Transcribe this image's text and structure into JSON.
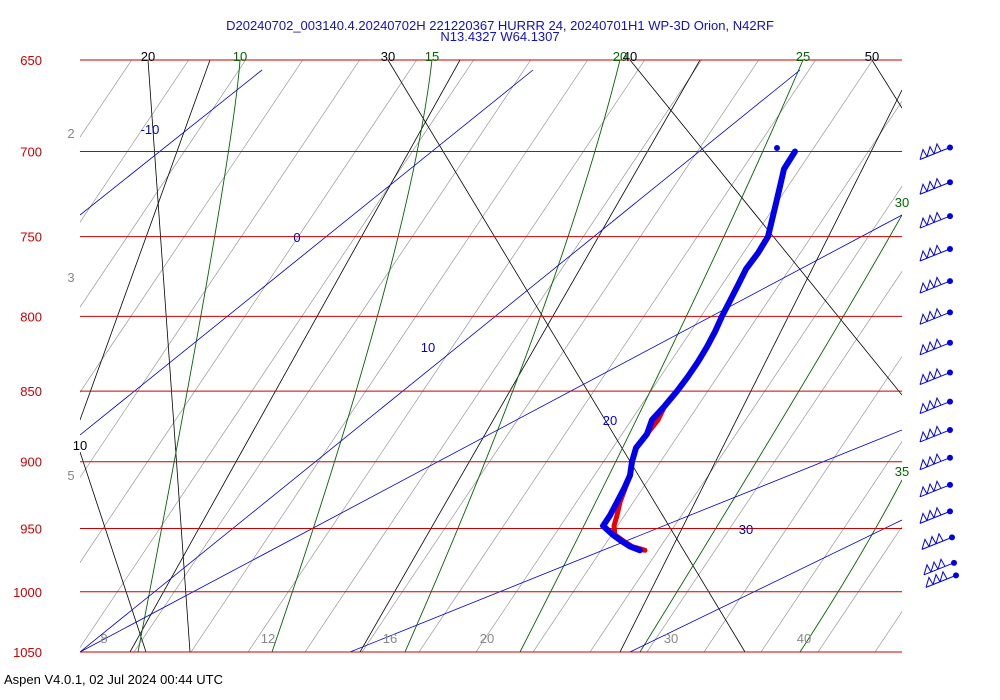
{
  "header": {
    "title_line1": "D20240702_003140.4.20240702H 221220367 HURRR 24, 20240701H1 WP-3D Orion, N42RF",
    "title_line2": "N13.4327 W64.1307"
  },
  "footer": {
    "text": "Aspen V4.0.1, 02 Jul 2024  00:44 UTC"
  },
  "colors": {
    "isobar": "#cc0000",
    "dry_adiabat": "#000000",
    "moist_adiabat": "#006600",
    "mixing_ratio": "#0000cc",
    "isotherm": "#888888",
    "temperature": "#ee0000",
    "dewpoint": "#0000ee",
    "wind": "#0000ee"
  },
  "chart_data": {
    "type": "skew-t log-p",
    "pressure_range": [
      650,
      1050
    ],
    "pressure_labels": [
      "650",
      "700",
      "750",
      "800",
      "850",
      "900",
      "950",
      "1000",
      "1050"
    ],
    "isotherm_bottom_labels": [
      "8",
      "12",
      "16",
      "20",
      "30",
      "40"
    ],
    "isotherm_left_labels": [
      "2",
      "3",
      "5"
    ],
    "dry_adiabat_labels": [
      "20",
      "30",
      "40",
      "50",
      "10"
    ],
    "moist_adiabat_labels": [
      "10",
      "15",
      "20",
      "25",
      "30",
      "35"
    ],
    "mixing_ratio_labels": [
      "-10",
      "0",
      "10",
      "20",
      "30"
    ],
    "temperature_profile": [
      [
        967,
        25.8
      ],
      [
        964,
        25.0
      ],
      [
        960,
        24.2
      ],
      [
        955,
        23.6
      ],
      [
        948,
        23.2
      ],
      [
        940,
        23.5
      ],
      [
        930,
        23.8
      ],
      [
        920,
        23.9
      ],
      [
        910,
        23.8
      ],
      [
        900,
        23.7
      ],
      [
        890,
        23.6
      ],
      [
        880,
        23.9
      ],
      [
        870,
        24.7
      ],
      [
        860,
        25.1
      ],
      [
        850,
        25.0
      ],
      [
        840,
        25.4
      ],
      [
        830,
        25.8
      ],
      [
        820,
        25.8
      ],
      [
        810,
        25.9
      ],
      [
        800,
        26.1
      ],
      [
        790,
        26.4
      ],
      [
        780,
        26.6
      ],
      [
        770,
        26.8
      ],
      [
        760,
        27.2
      ],
      [
        750,
        27.5
      ],
      [
        740,
        27.3
      ],
      [
        730,
        27.7
      ],
      [
        720,
        27.5
      ],
      [
        710,
        27.6
      ],
      [
        700,
        28.0
      ]
    ],
    "dewpoint_profile": [
      [
        967,
        25.8
      ],
      [
        964,
        25.0
      ],
      [
        960,
        24.2
      ],
      [
        955,
        23.6
      ],
      [
        948,
        23.2
      ],
      [
        940,
        23.5
      ],
      [
        930,
        23.8
      ],
      [
        920,
        23.9
      ],
      [
        910,
        23.8
      ],
      [
        900,
        23.7
      ],
      [
        890,
        23.6
      ],
      [
        880,
        23.9
      ],
      [
        870,
        24.3
      ],
      [
        860,
        25.1
      ],
      [
        850,
        25.0
      ],
      [
        840,
        25.4
      ],
      [
        830,
        25.8
      ],
      [
        820,
        25.8
      ],
      [
        810,
        25.9
      ],
      [
        800,
        26.1
      ],
      [
        790,
        26.4
      ],
      [
        780,
        26.6
      ],
      [
        770,
        26.8
      ],
      [
        760,
        27.2
      ],
      [
        750,
        27.5
      ],
      [
        740,
        27.3
      ],
      [
        730,
        27.7
      ],
      [
        720,
        27.5
      ],
      [
        710,
        27.6
      ],
      [
        700,
        28.0
      ]
    ],
    "wind_barb_levels": [
      700,
      720,
      740,
      760,
      780,
      800,
      820,
      840,
      860,
      880,
      900,
      920,
      940,
      960,
      980,
      990
    ]
  }
}
